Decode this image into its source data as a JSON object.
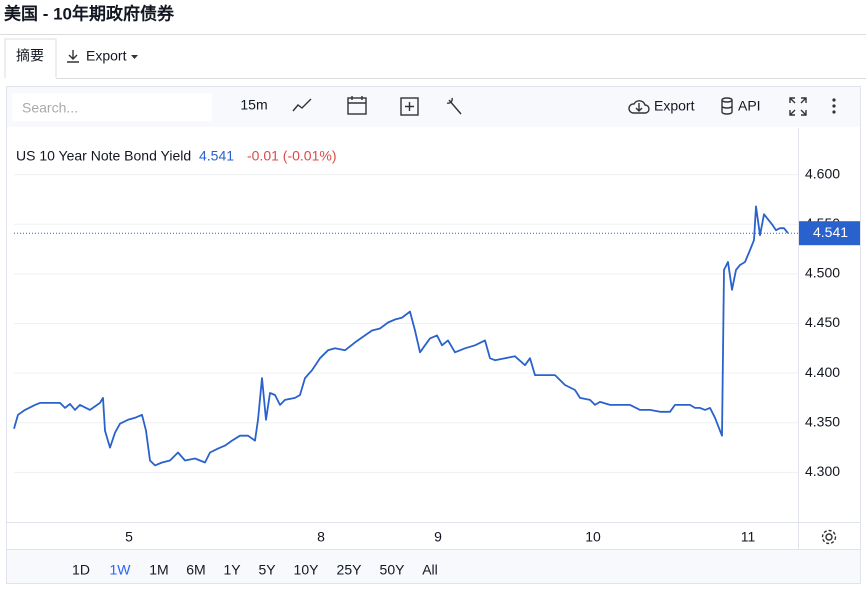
{
  "header": {
    "title": "美国 - 10年期政府债券"
  },
  "tabs": [
    "摘要"
  ],
  "export_button": "Export",
  "toolbar": {
    "search_placeholder": "Search...",
    "interval": "15m",
    "export": "Export",
    "api": "API"
  },
  "chart_data": {
    "type": "line",
    "legend": {
      "name": "US 10 Year Note Bond Yield",
      "change_text": "-0.01 (-0.01%)"
    },
    "last_value": 4.541,
    "x": [
      0,
      4,
      11,
      21,
      26,
      46,
      51,
      56,
      61,
      66,
      76,
      86,
      89,
      91,
      96,
      101,
      106,
      114,
      121,
      128,
      132,
      136,
      141,
      148,
      156,
      164,
      171,
      181,
      191,
      196,
      204,
      211,
      218,
      226,
      234,
      241,
      244,
      248,
      252,
      256,
      261,
      266,
      271,
      281,
      286,
      291,
      298,
      306,
      314,
      321,
      331,
      341,
      351,
      358,
      366,
      374,
      381,
      388,
      396,
      401,
      406,
      411,
      416,
      423,
      428,
      434,
      441,
      451,
      461,
      471,
      476,
      481,
      491,
      501,
      511,
      516,
      521,
      531,
      541,
      551,
      561,
      566,
      576,
      581,
      586,
      596,
      606,
      616,
      626,
      636,
      646,
      656,
      661,
      666,
      676,
      681,
      686,
      691,
      696,
      701,
      706,
      708,
      710,
      714,
      718,
      722,
      726,
      731,
      736,
      740,
      742,
      746,
      750,
      754,
      758,
      762,
      766,
      770,
      774
    ],
    "series": [
      {
        "name": "US 10 Year Note Bond Yield",
        "color": "#2962cc",
        "values": [
          4.344,
          4.358,
          4.363,
          4.368,
          4.37,
          4.37,
          4.365,
          4.369,
          4.363,
          4.368,
          4.363,
          4.37,
          4.375,
          4.342,
          4.325,
          4.34,
          4.349,
          4.353,
          4.355,
          4.358,
          4.342,
          4.312,
          4.307,
          4.31,
          4.312,
          4.32,
          4.312,
          4.314,
          4.31,
          4.32,
          4.324,
          4.327,
          4.332,
          4.337,
          4.337,
          4.332,
          4.353,
          4.395,
          4.353,
          4.38,
          4.378,
          4.368,
          4.373,
          4.375,
          4.378,
          4.395,
          4.403,
          4.415,
          4.423,
          4.425,
          4.423,
          4.431,
          4.438,
          4.443,
          4.445,
          4.451,
          4.454,
          4.456,
          4.462,
          4.443,
          4.421,
          4.428,
          4.435,
          4.438,
          4.428,
          4.433,
          4.421,
          4.425,
          4.428,
          4.433,
          4.415,
          4.413,
          4.415,
          4.417,
          4.408,
          4.415,
          4.398,
          4.398,
          4.398,
          4.388,
          4.383,
          4.375,
          4.373,
          4.368,
          4.371,
          4.368,
          4.368,
          4.368,
          4.363,
          4.363,
          4.361,
          4.361,
          4.368,
          4.368,
          4.368,
          4.365,
          4.365,
          4.363,
          4.365,
          4.355,
          4.342,
          4.337,
          4.504,
          4.512,
          4.484,
          4.504,
          4.509,
          4.512,
          4.524,
          4.534,
          4.568,
          4.539,
          4.56,
          4.555,
          4.55,
          4.544,
          4.546,
          4.546,
          4.541
        ]
      }
    ],
    "xlim": [
      0,
      784
    ],
    "xticks": [
      {
        "value": 115,
        "label": "5"
      },
      {
        "value": 307,
        "label": "8"
      },
      {
        "value": 424,
        "label": "9"
      },
      {
        "value": 579,
        "label": "10"
      },
      {
        "value": 734,
        "label": "11"
      }
    ],
    "ylim": [
      4.25,
      4.647
    ],
    "yticks": [
      {
        "value": 4.3,
        "label": "4.300"
      },
      {
        "value": 4.35,
        "label": "4.350"
      },
      {
        "value": 4.4,
        "label": "4.400"
      },
      {
        "value": 4.45,
        "label": "4.450"
      },
      {
        "value": 4.5,
        "label": "4.500"
      },
      {
        "value": 4.55,
        "label": "4.550"
      },
      {
        "value": 4.6,
        "label": "4.600"
      }
    ],
    "grid": true
  },
  "ranges": [
    "1D",
    "1W",
    "1M",
    "6M",
    "1Y",
    "5Y",
    "10Y",
    "25Y",
    "50Y",
    "All"
  ],
  "selected_range_index": 1
}
